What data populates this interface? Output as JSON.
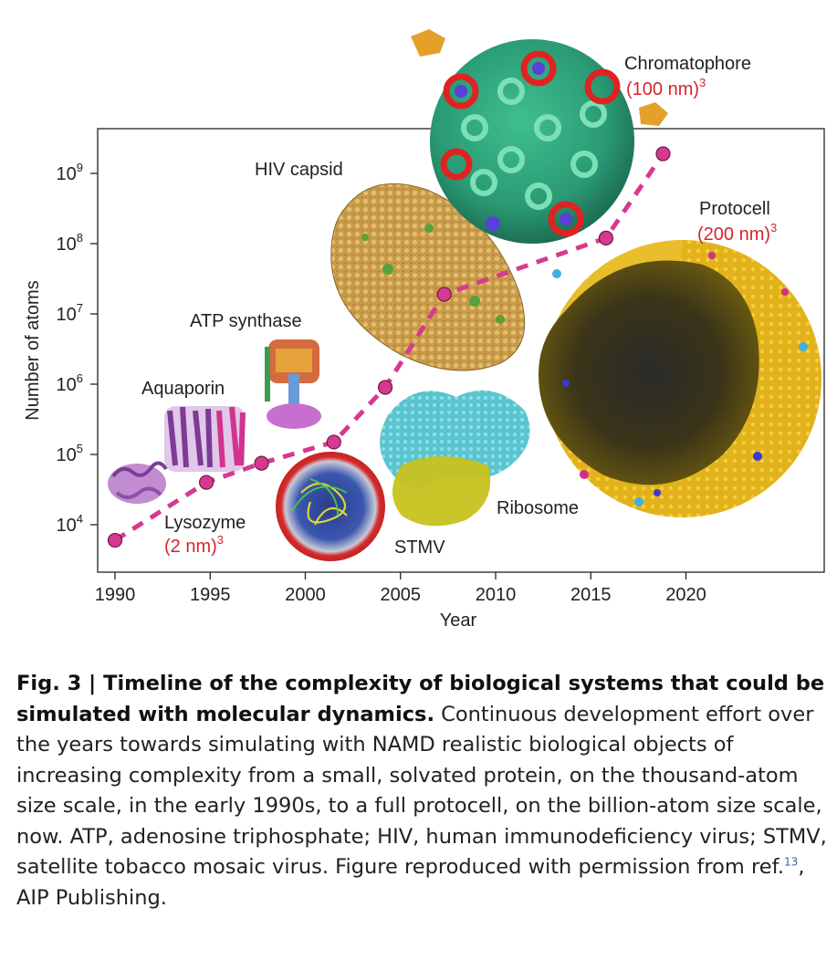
{
  "chart_data": {
    "type": "scatter",
    "title": "",
    "xlabel": "Year",
    "ylabel": "Number of atoms",
    "xlim": [
      1989,
      2027
    ],
    "ylim_log10": [
      3.7,
      9.5
    ],
    "x_ticks": [
      1990,
      1995,
      2000,
      2005,
      2010,
      2015,
      2020
    ],
    "y_ticks": [
      {
        "exp": 4,
        "base": "10",
        "pow": "4"
      },
      {
        "exp": 5,
        "base": "10",
        "pow": "5"
      },
      {
        "exp": 6,
        "base": "10",
        "pow": "6"
      },
      {
        "exp": 7,
        "base": "10",
        "pow": "7"
      },
      {
        "exp": 8,
        "base": "10",
        "pow": "8"
      },
      {
        "exp": 9,
        "base": "10",
        "pow": "9"
      }
    ],
    "scale_y": "log",
    "grid": false,
    "line_style": "dashed",
    "marker_color": "#d63a8e",
    "line_color": "#d63a8e",
    "points": [
      {
        "x": 1990,
        "y": 6000
      },
      {
        "x": 1994.8,
        "y": 40000
      },
      {
        "x": 1997.7,
        "y": 75000
      },
      {
        "x": 2001.5,
        "y": 150000
      },
      {
        "x": 2004.2,
        "y": 900000
      },
      {
        "x": 2007.3,
        "y": 19000000
      },
      {
        "x": 2015.8,
        "y": 120000000
      },
      {
        "x": 2018.8,
        "y": 1900000000
      }
    ],
    "annotations": {
      "lysozyme": {
        "name": "Lysozyme",
        "size": "(2 nm)",
        "pow": "3"
      },
      "aquaporin": {
        "name": "Aquaporin"
      },
      "atp": {
        "name": "ATP synthase"
      },
      "stmv": {
        "name": "STMV"
      },
      "ribosome": {
        "name": "Ribosome"
      },
      "hiv": {
        "name": "HIV capsid"
      },
      "chromatophore": {
        "name": "Chromatophore",
        "size": "(100 nm)",
        "pow": "3"
      },
      "protocell": {
        "name": "Protocell",
        "size": "(200 nm)",
        "pow": "3"
      }
    },
    "colors": {
      "label_red": "#d6252c",
      "axis": "#222222"
    }
  },
  "caption": {
    "title": "Fig. 3 | Timeline of the complexity of biological systems that could be simulated with molecular dynamics.",
    "body": " Continuous development effort over the years towards simulating with NAMD realistic biological objects of increasing complexity from a small, solvated protein, on the thousand-atom size scale, in the early 1990s, to a full protocell, on the billion-atom size scale, now. ATP, adenosine triphosphate; HIV, human immunodeficiency virus; STMV, satellite tobacco mosaic virus. Figure reproduced with permission from ref.",
    "ref_number": "13",
    "tail": ", AIP Publishing."
  }
}
